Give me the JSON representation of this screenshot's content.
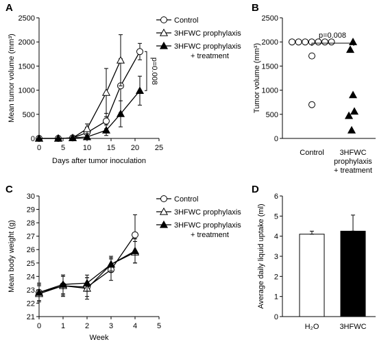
{
  "chart_data": [
    {
      "panel": "A",
      "type": "line",
      "xlabel": "Days after tumor inoculation",
      "ylabel": "Mean tumor volume (mm³)",
      "xlim": [
        0,
        25
      ],
      "ylim": [
        0,
        2500
      ],
      "xticks": [
        0,
        5,
        10,
        15,
        20,
        25
      ],
      "yticks": [
        0,
        500,
        1000,
        1500,
        2000,
        2500
      ],
      "legend_position": "top-right",
      "annotation": "p=0.008",
      "series": [
        {
          "name": "Control",
          "marker": "circle-open",
          "x": [
            0,
            4,
            7,
            10,
            14,
            17,
            21
          ],
          "y": [
            0,
            0,
            10,
            120,
            360,
            1090,
            1800
          ],
          "err": [
            0,
            0,
            20,
            110,
            160,
            560,
            170
          ]
        },
        {
          "name": "3HFWC prophylaxis",
          "marker": "triangle-open",
          "x": [
            0,
            4,
            7,
            10,
            14,
            17
          ],
          "y": [
            0,
            0,
            10,
            200,
            950,
            1620
          ],
          "err": [
            0,
            0,
            20,
            100,
            500,
            530
          ]
        },
        {
          "name": "3HFWC prophylaxis\n+ treatment",
          "marker": "triangle-filled",
          "x": [
            0,
            4,
            7,
            10,
            14,
            17,
            21
          ],
          "y": [
            0,
            0,
            10,
            30,
            170,
            510,
            990
          ],
          "err": [
            0,
            0,
            20,
            40,
            110,
            270,
            300
          ]
        }
      ]
    },
    {
      "panel": "B",
      "type": "scatter",
      "ylabel": "Tumor volume (mm³)",
      "ylim": [
        0,
        2500
      ],
      "yticks": [
        0,
        500,
        1000,
        1500,
        2000,
        2500
      ],
      "categories": [
        "Control",
        "3HFWC\nprophylaxis\n+ treatment"
      ],
      "annotation": "p=0.008",
      "series": [
        {
          "name": "Control",
          "marker": "circle-open",
          "category": 0,
          "values": [
            2000,
            2000,
            2000,
            2000,
            2000,
            2000,
            2000,
            1710,
            700
          ]
        },
        {
          "name": "3HFWC prophylaxis + treatment",
          "marker": "triangle-filled",
          "category": 1,
          "values": [
            2000,
            1840,
            900,
            560,
            470,
            170
          ]
        }
      ]
    },
    {
      "panel": "C",
      "type": "line",
      "xlabel": "Week",
      "ylabel": "Mean body weight (g)",
      "xlim": [
        0,
        5
      ],
      "ylim": [
        21,
        30
      ],
      "xticks": [
        0,
        1,
        2,
        3,
        4,
        5
      ],
      "yticks": [
        21,
        22,
        23,
        24,
        25,
        26,
        27,
        28,
        29,
        30
      ],
      "legend_position": "top-right",
      "series": [
        {
          "name": "Control",
          "marker": "circle-open",
          "x": [
            0,
            1,
            2,
            3,
            4
          ],
          "y": [
            22.8,
            23.3,
            23.2,
            24.5,
            27.1
          ],
          "err": [
            0.7,
            0.8,
            0.7,
            0.8,
            1.5
          ]
        },
        {
          "name": "3HFWC prophylaxis",
          "marker": "triangle-open",
          "x": [
            0,
            1,
            2,
            3,
            4
          ],
          "y": [
            22.7,
            23.3,
            23.1,
            24.9,
            25.8
          ],
          "err": [
            0.6,
            0.7,
            0.8,
            0.5,
            0.8
          ]
        },
        {
          "name": "3HFWC prophylaxis\n+ treatment",
          "marker": "triangle-filled",
          "x": [
            0,
            1,
            2,
            3,
            4
          ],
          "y": [
            22.8,
            23.4,
            23.5,
            24.9,
            25.9
          ],
          "err": [
            0.6,
            0.7,
            0.6,
            0.6,
            0.9
          ]
        }
      ]
    },
    {
      "panel": "D",
      "type": "bar",
      "ylabel": "Average daily liquid uptake (ml)",
      "ylim": [
        0,
        6
      ],
      "yticks": [
        0,
        1,
        2,
        3,
        4,
        5,
        6
      ],
      "categories": [
        "H₂O",
        "3HFWC"
      ],
      "values": [
        4.1,
        4.25
      ],
      "err": [
        0.15,
        0.8
      ],
      "colors": [
        "#ffffff",
        "#000000"
      ]
    }
  ]
}
